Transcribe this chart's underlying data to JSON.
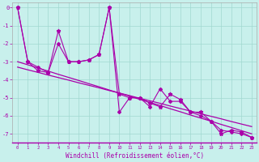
{
  "xlabel": "Windchill (Refroidissement éolien,°C)",
  "background_color": "#c8f0ec",
  "grid_color": "#a0d8d0",
  "line_color": "#aa00aa",
  "x_data": [
    0,
    1,
    2,
    3,
    4,
    5,
    6,
    7,
    8,
    9,
    10,
    11,
    12,
    13,
    14,
    15,
    16,
    17,
    18,
    19,
    20,
    21,
    22,
    23
  ],
  "y_jagged1": [
    0,
    -3.0,
    -3.5,
    -3.6,
    -1.3,
    -3.0,
    -3.0,
    -2.9,
    -2.6,
    0.0,
    -4.8,
    -5.0,
    -5.0,
    -5.3,
    -5.5,
    -4.8,
    -5.1,
    -5.8,
    -5.8,
    -6.3,
    -7.0,
    -6.8,
    -6.9,
    -7.2
  ],
  "y_jagged2": [
    0,
    -3.0,
    -3.3,
    -3.6,
    -2.0,
    -3.0,
    -3.0,
    -2.9,
    -2.6,
    0.0,
    -5.8,
    -5.0,
    -5.0,
    -5.5,
    -4.5,
    -5.2,
    -5.2,
    -5.8,
    -6.0,
    -6.3,
    -6.8,
    -6.9,
    -7.0,
    -7.2
  ],
  "trend1": [
    -3.0,
    -3.17,
    -3.35,
    -3.52,
    -3.7,
    -3.87,
    -4.04,
    -4.22,
    -4.39,
    -4.57,
    -4.74,
    -4.91,
    -5.09,
    -5.26,
    -5.43,
    -5.61,
    -5.78,
    -5.96,
    -6.13,
    -6.3,
    -6.48,
    -6.65,
    -6.83,
    -7.0
  ],
  "trend2": [
    -3.3,
    -3.45,
    -3.59,
    -3.74,
    -3.88,
    -4.02,
    -4.17,
    -4.31,
    -4.45,
    -4.6,
    -4.74,
    -4.88,
    -5.03,
    -5.17,
    -5.31,
    -5.46,
    -5.6,
    -5.74,
    -5.89,
    -6.03,
    -6.17,
    -6.32,
    -6.46,
    -6.6
  ],
  "ylim": [
    -7.5,
    0.3
  ],
  "xlim": [
    -0.5,
    23.5
  ],
  "yticks": [
    0,
    -1,
    -2,
    -3,
    -4,
    -5,
    -6,
    -7
  ],
  "xticks": [
    0,
    1,
    2,
    3,
    4,
    5,
    6,
    7,
    8,
    9,
    10,
    11,
    12,
    13,
    14,
    15,
    16,
    17,
    18,
    19,
    20,
    21,
    22,
    23
  ]
}
